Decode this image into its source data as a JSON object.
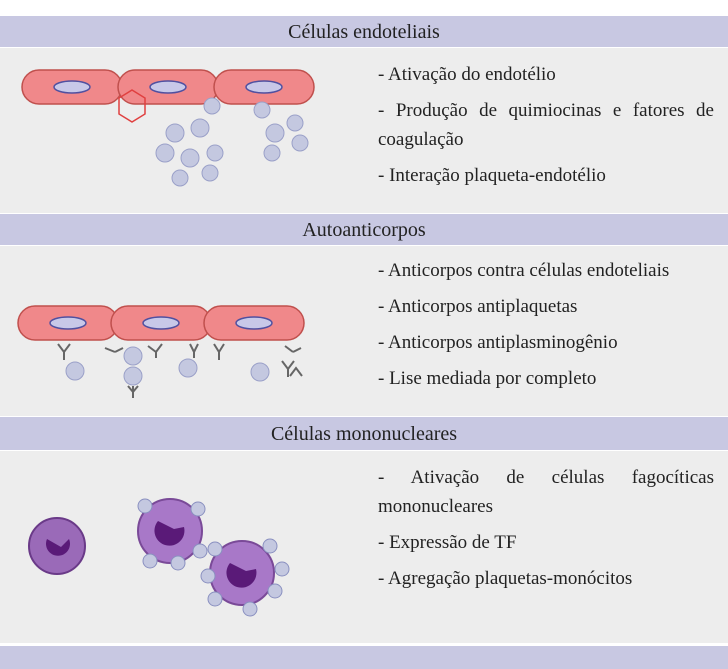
{
  "sections": [
    {
      "title": "Células endoteliais",
      "items": [
        "- Ativação do endotélio",
        "- Produção de quimiocinas e fatores de coagulação",
        "- Interação plaqueta-endotélio"
      ]
    },
    {
      "title": "Autoanticorpos",
      "items": [
        "- Anticorpos contra células endoteliais",
        "- Anticorpos antiplaquetas",
        "- Anticorpos antiplasminogênio",
        "- Lise mediada por completo"
      ]
    },
    {
      "title": "Células mononucleares",
      "items": [
        "- Ativação de células fagocíticas mononucleares",
        "- Expressão de TF",
        "- Agregação plaquetas-monócitos"
      ]
    }
  ]
}
